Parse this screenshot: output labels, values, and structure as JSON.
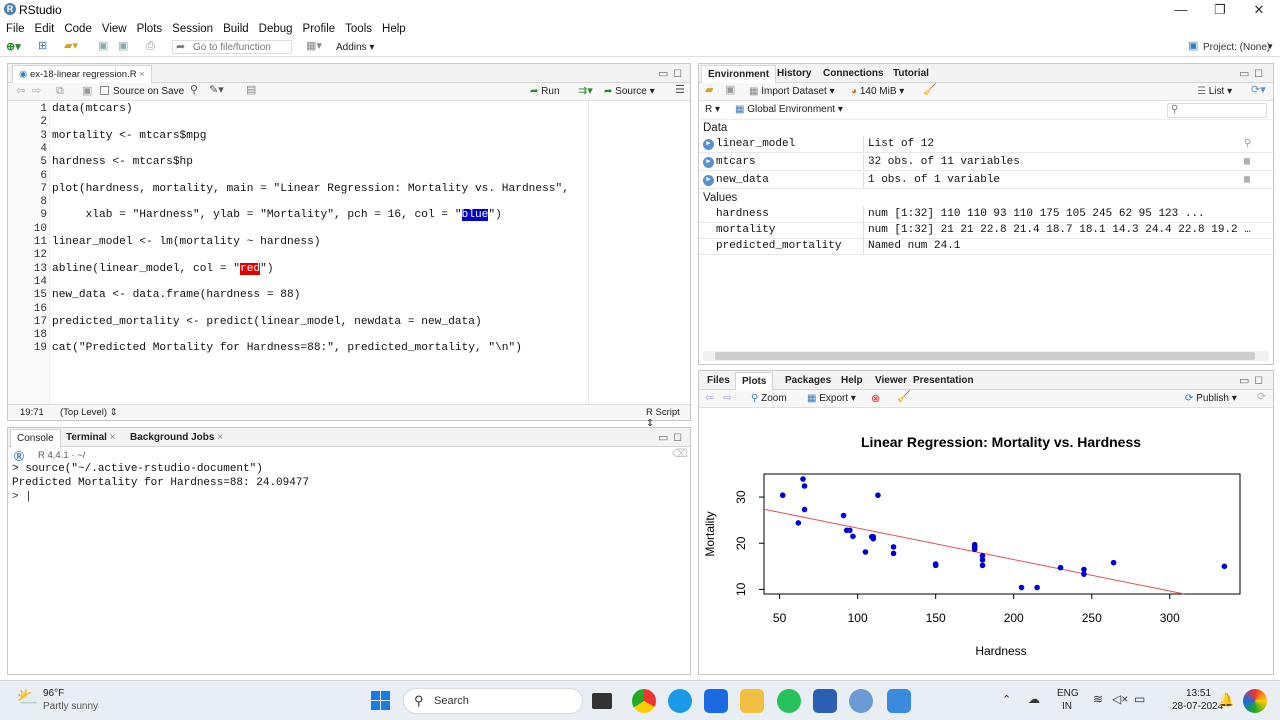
{
  "window": {
    "title": "RStudio",
    "minimize": "—",
    "maximize": "❐",
    "close": "✕"
  },
  "menu": [
    "File",
    "Edit",
    "Code",
    "View",
    "Plots",
    "Session",
    "Build",
    "Debug",
    "Profile",
    "Tools",
    "Help"
  ],
  "toolbar": {
    "goto_placeholder": "Go to file/function",
    "addins": "Addins",
    "project": "Project: (None)"
  },
  "editor": {
    "tab_label": "ex-18-linear regression.R",
    "source_on_save": "Source on Save",
    "run": "Run",
    "source": "Source",
    "status_pos": "19:71",
    "status_scope": "(Top Level)",
    "status_type": "R Script",
    "lines": [
      {
        "n": "1",
        "pre": "data(mtcars)",
        "hl": "",
        "post": ""
      },
      {
        "n": "2",
        "pre": "",
        "hl": "",
        "post": ""
      },
      {
        "n": "3",
        "pre": "mortality <- mtcars$mpg",
        "hl": "",
        "post": ""
      },
      {
        "n": "4",
        "pre": "",
        "hl": "",
        "post": ""
      },
      {
        "n": "5",
        "pre": "hardness <- mtcars$hp",
        "hl": "",
        "post": ""
      },
      {
        "n": "6",
        "pre": "",
        "hl": "",
        "post": ""
      },
      {
        "n": "7",
        "pre": "plot(hardness, mortality, main = \"Linear Regression: Mortality vs. Hardness\",",
        "hl": "",
        "post": ""
      },
      {
        "n": "8",
        "pre": "",
        "hl": "",
        "post": ""
      },
      {
        "n": "9",
        "pre": "     xlab = \"Hardness\", ylab = \"Mortality\", pch = 16, col = \"",
        "hl": "blue",
        "post": "\")"
      },
      {
        "n": "10",
        "pre": "",
        "hl": "",
        "post": ""
      },
      {
        "n": "11",
        "pre": "linear_model <- lm(mortality ~ hardness)",
        "hl": "",
        "post": ""
      },
      {
        "n": "12",
        "pre": "",
        "hl": "",
        "post": ""
      },
      {
        "n": "13",
        "pre": "abline(linear_model, col = \"",
        "hl": "red",
        "post": "\")"
      },
      {
        "n": "14",
        "pre": "",
        "hl": "",
        "post": ""
      },
      {
        "n": "15",
        "pre": "new_data <- data.frame(hardness = 88)",
        "hl": "",
        "post": ""
      },
      {
        "n": "16",
        "pre": "",
        "hl": "",
        "post": ""
      },
      {
        "n": "17",
        "pre": "predicted_mortality <- predict(linear_model, newdata = new_data)",
        "hl": "",
        "post": ""
      },
      {
        "n": "18",
        "pre": "",
        "hl": "",
        "post": ""
      },
      {
        "n": "19",
        "pre": "cat(\"Predicted Mortality for Hardness=88:\", predicted_mortality, \"\\n\")",
        "hl": "",
        "post": ""
      }
    ]
  },
  "console": {
    "tabs": [
      "Console",
      "Terminal",
      "Background Jobs"
    ],
    "version": "R 4.4.1 · ~/",
    "lines": [
      "> source(\"~/.active-rstudio-document\")",
      "Predicted Mortality for Hardness=88: 24.09477",
      "> |"
    ]
  },
  "environment": {
    "tabs": [
      "Environment",
      "History",
      "Connections",
      "Tutorial"
    ],
    "import_dataset": "Import Dataset",
    "memory": "140 MiB",
    "list_view": "List",
    "lang": "R",
    "scope": "Global Environment",
    "data_header": "Data",
    "values_header": "Values",
    "data": [
      {
        "name": "linear_model",
        "value": "List of  12"
      },
      {
        "name": "mtcars",
        "value": "32 obs. of 11 variables"
      },
      {
        "name": "new_data",
        "value": "1 obs. of 1 variable"
      }
    ],
    "values": [
      {
        "name": "hardness",
        "value": "num [1:32] 110 110 93 110 175 105 245 62 95 123 ..."
      },
      {
        "name": "mortality",
        "value": "num [1:32] 21 21 22.8 21.4 18.7 18.1 14.3 24.4 22.8 19.2 …"
      },
      {
        "name": "predicted_mortality",
        "value": "Named num 24.1"
      }
    ]
  },
  "files": {
    "tabs": [
      "Files",
      "Plots",
      "Packages",
      "Help",
      "Viewer",
      "Presentation"
    ],
    "zoom": "Zoom",
    "export": "Export",
    "publish": "Publish"
  },
  "chart_data": {
    "type": "scatter",
    "title": "Linear Regression: Mortality vs. Hardness",
    "xlabel": "Hardness",
    "ylabel": "Mortality",
    "xlim": [
      40,
      345
    ],
    "ylim": [
      9,
      35
    ],
    "xticks": [
      "50",
      "100",
      "150",
      "200",
      "250",
      "300"
    ],
    "yticks": [
      "10",
      "20",
      "30"
    ],
    "grid": false,
    "point_color": "#0000cc",
    "line_color": "#e05050",
    "points": [
      [
        110,
        21
      ],
      [
        110,
        21
      ],
      [
        93,
        22.8
      ],
      [
        110,
        21.4
      ],
      [
        175,
        18.7
      ],
      [
        105,
        18.1
      ],
      [
        245,
        14.3
      ],
      [
        62,
        24.4
      ],
      [
        95,
        22.8
      ],
      [
        123,
        19.2
      ],
      [
        123,
        17.8
      ],
      [
        180,
        16.4
      ],
      [
        180,
        17.3
      ],
      [
        180,
        15.2
      ],
      [
        205,
        10.4
      ],
      [
        215,
        10.4
      ],
      [
        230,
        14.7
      ],
      [
        66,
        32.4
      ],
      [
        52,
        30.4
      ],
      [
        65,
        33.9
      ],
      [
        97,
        21.5
      ],
      [
        150,
        15.5
      ],
      [
        150,
        15.2
      ],
      [
        245,
        13.3
      ],
      [
        175,
        19.2
      ],
      [
        66,
        27.3
      ],
      [
        91,
        26
      ],
      [
        113,
        30.4
      ],
      [
        264,
        15.8
      ],
      [
        175,
        19.7
      ],
      [
        335,
        15
      ],
      [
        109,
        21.4
      ]
    ],
    "regression": {
      "intercept": 30.1,
      "slope": -0.0682
    }
  },
  "taskbar": {
    "temp": "96°F",
    "weather": "Partly sunny",
    "search": "Search",
    "lang1": "ENG",
    "lang2": "IN",
    "time": "13:51",
    "date": "28-07-2024"
  }
}
